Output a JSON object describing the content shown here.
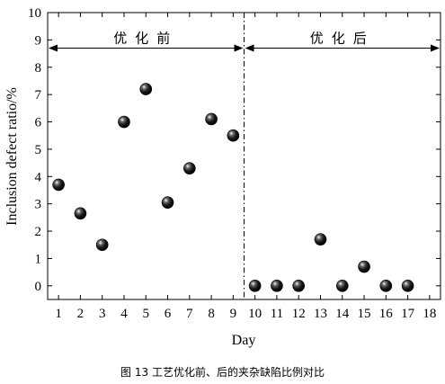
{
  "caption": "图 13  工艺优化前、后的夹杂缺陷比例对比",
  "chart_data": {
    "type": "scatter",
    "xlabel": "Day",
    "ylabel": "Inclusion defect ratio/%",
    "xlim": [
      0.5,
      18.5
    ],
    "ylim": [
      -0.5,
      10
    ],
    "xticks": [
      1,
      2,
      3,
      4,
      5,
      6,
      7,
      8,
      9,
      10,
      11,
      12,
      13,
      14,
      15,
      16,
      17,
      18
    ],
    "yticks": [
      0,
      1,
      2,
      3,
      4,
      5,
      6,
      7,
      8,
      9,
      10
    ],
    "divider_x": 9.5,
    "regions": {
      "before": {
        "label": "优化前",
        "x_range": [
          0.5,
          9.5
        ]
      },
      "after": {
        "label": "优化后",
        "x_range": [
          9.5,
          18.5
        ]
      }
    },
    "arrow_y": 8.7,
    "marker": "black sphere",
    "grid": false,
    "x": [
      1,
      2,
      3,
      4,
      5,
      6,
      7,
      8,
      9,
      10,
      11,
      12,
      13,
      14,
      15,
      16,
      17
    ],
    "y": [
      3.7,
      2.65,
      1.5,
      6.0,
      7.2,
      3.05,
      4.3,
      6.1,
      5.5,
      0.0,
      0.0,
      0.0,
      1.7,
      0.0,
      0.7,
      0.0,
      0.0
    ]
  }
}
